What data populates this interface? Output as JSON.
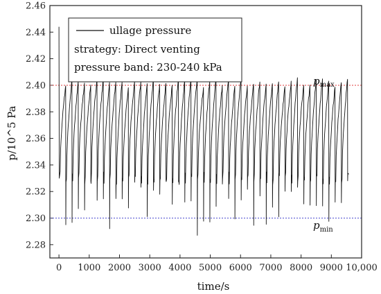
{
  "chart_data": {
    "type": "line",
    "xlabel": "time/s",
    "ylabel": "p/10^5 Pa",
    "xlim": [
      -300,
      10000
    ],
    "ylim": [
      2.27,
      2.46
    ],
    "x_ticks": [
      0,
      1000,
      2000,
      3000,
      4000,
      5000,
      6000,
      7000,
      8000,
      9000,
      10000
    ],
    "x_tick_labels": [
      "0",
      "1000",
      "2000",
      "3000",
      "4000",
      "5000",
      "6000",
      "7000",
      "8000",
      "9000",
      "10,000"
    ],
    "y_ticks": [
      2.28,
      2.3,
      2.32,
      2.34,
      2.36,
      2.38,
      2.4,
      2.42,
      2.44,
      2.46
    ],
    "y_tick_labels": [
      "2.28",
      "2.30",
      "2.32",
      "2.34",
      "2.36",
      "2.38",
      "2.40",
      "2.42",
      "2.44",
      "2.46"
    ],
    "legend": {
      "placement": "top-left",
      "series_label": "ullage pressure",
      "lines": [
        "strategy: Direct venting",
        "pressure band: 230-240 kPa"
      ]
    },
    "reference_lines": [
      {
        "name": "pmax",
        "y": 2.4,
        "color": "#e23b3b",
        "label_main": "p",
        "label_sub": "max"
      },
      {
        "name": "pmin",
        "y": 2.3,
        "color": "#4a4ad0",
        "label_main": "p",
        "label_sub": "min"
      }
    ],
    "series": [
      {
        "color": "#111111",
        "initial": {
          "x": 0,
          "y": 2.444
        },
        "cycle_count": 46,
        "x_start": 40,
        "x_end": 9560,
        "peak_range": [
          2.398,
          2.406
        ],
        "min_range": [
          2.294,
          2.33
        ],
        "special_minima": [
          {
            "index": 7,
            "y": 2.292
          },
          {
            "index": 21,
            "y": 2.287
          }
        ]
      }
    ]
  }
}
